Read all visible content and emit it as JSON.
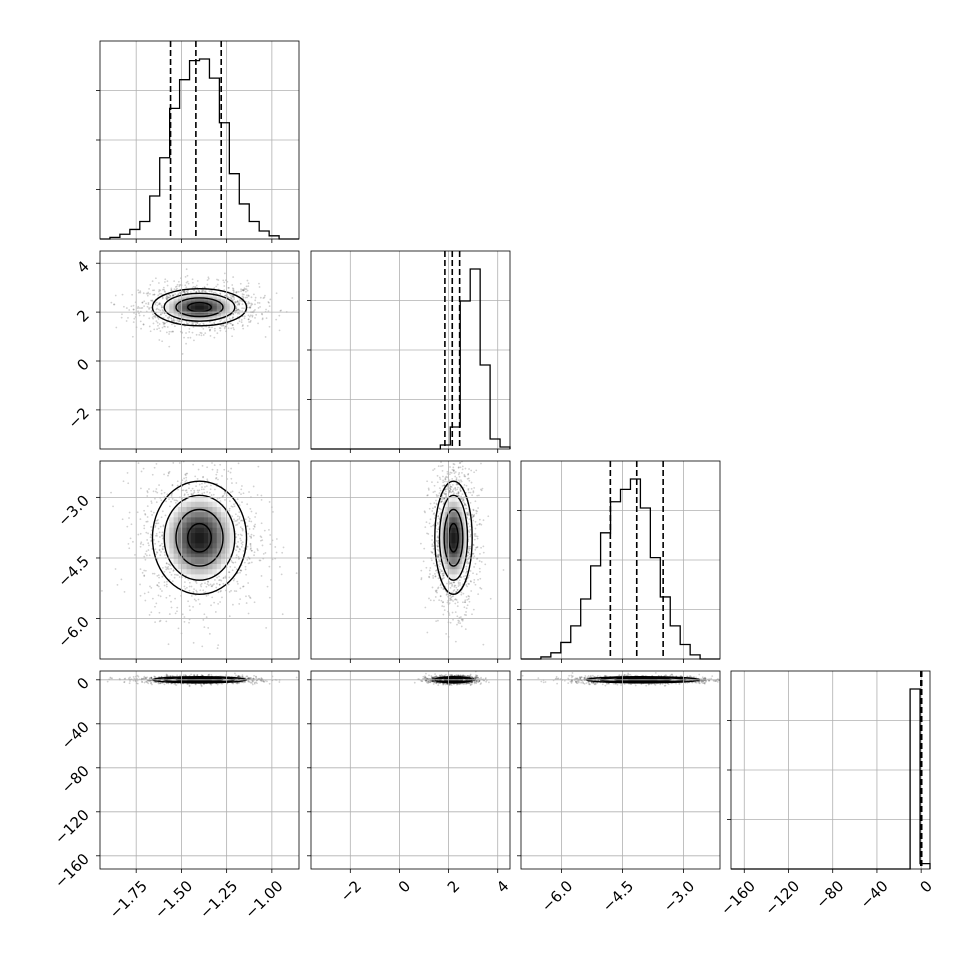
{
  "chart_data": {
    "type": "corner",
    "title": "",
    "parameters": [
      {
        "xlim": [
          -1.95,
          -0.85
        ],
        "ylim": [
          -3.6,
          4.5
        ],
        "ticks": [
          -1.75,
          -1.5,
          -1.25,
          -1.0
        ],
        "tick_labels": [
          "−1.75",
          "−1.50",
          "−1.25",
          "−1.00"
        ],
        "quantiles": [
          -1.56,
          -1.42,
          -1.28
        ],
        "peak": -1.4
      },
      {
        "xlim": [
          -3.6,
          4.5
        ],
        "ylim": [
          -3.6,
          4.5
        ],
        "ticks": [
          -2,
          0,
          2,
          4
        ],
        "tick_labels": [
          "−2",
          "0",
          "2",
          "4"
        ],
        "quantiles": [
          1.85,
          2.15,
          2.45
        ],
        "peak": 2.2
      },
      {
        "xlim": [
          -7.0,
          -2.1
        ],
        "ylim": [
          -7.0,
          -2.1
        ],
        "ticks": [
          -6.0,
          -4.5,
          -3.0
        ],
        "tick_labels": [
          "−6.0",
          "−4.5",
          "−3.0"
        ],
        "quantiles": [
          -4.8,
          -4.15,
          -3.5
        ],
        "peak": -4.0
      },
      {
        "xlim": [
          -172,
          8
        ],
        "ylim": [
          -172,
          8
        ],
        "ticks": [
          -160,
          -120,
          -80,
          -40,
          0
        ],
        "tick_labels": [
          "−160",
          "−120",
          "−80",
          "−40",
          "0"
        ],
        "quantiles": [
          -0.3,
          0.1,
          0.5
        ],
        "peak": 0.0
      }
    ],
    "histograms": [
      {
        "param": 0,
        "bin_start": -1.95,
        "bin_width": 0.055,
        "counts": [
          0,
          1,
          3,
          6,
          11,
          27,
          51,
          82,
          100,
          112,
          113,
          101,
          73,
          41,
          22,
          11,
          5,
          2,
          0,
          0
        ]
      },
      {
        "param": 1,
        "bin_start": -3.6,
        "bin_width": 0.405,
        "counts": [
          0,
          0,
          0,
          0,
          0,
          0,
          0,
          0,
          0,
          0,
          0,
          0,
          0,
          2,
          11,
          74,
          90,
          42,
          5,
          1
        ]
      },
      {
        "param": 2,
        "bin_start": -7.0,
        "bin_width": 0.245,
        "counts": [
          0,
          0,
          1,
          3,
          8,
          16,
          29,
          45,
          61,
          76,
          82,
          87,
          73,
          49,
          30,
          16,
          7,
          2,
          0,
          0
        ]
      },
      {
        "param": 3,
        "bin_start": -172,
        "bin_width": 9,
        "counts": [
          0,
          0,
          0,
          0,
          0,
          0,
          0,
          0,
          0,
          0,
          0,
          0,
          0,
          0,
          0,
          0,
          0,
          0,
          100,
          3
        ]
      }
    ],
    "pairs": [
      {
        "x": 0,
        "y": 1,
        "mean": [
          -1.4,
          2.2
        ],
        "sd": [
          0.13,
          0.38
        ]
      },
      {
        "x": 0,
        "y": 2,
        "mean": [
          -1.4,
          -4.0
        ],
        "sd": [
          0.13,
          0.7
        ]
      },
      {
        "x": 1,
        "y": 2,
        "mean": [
          2.2,
          -4.0
        ],
        "sd": [
          0.38,
          0.7
        ]
      },
      {
        "x": 0,
        "y": 3,
        "mean": [
          -1.4,
          0.0
        ],
        "sd": [
          0.13,
          1.4
        ]
      },
      {
        "x": 1,
        "y": 3,
        "mean": [
          2.2,
          0.0
        ],
        "sd": [
          0.38,
          1.4
        ]
      },
      {
        "x": 2,
        "y": 3,
        "mean": [
          -4.0,
          0.0
        ],
        "sd": [
          0.7,
          1.4
        ]
      }
    ],
    "contour_levels_sigma": [
      0.5,
      1.0,
      1.5,
      2.0
    ],
    "grid": true,
    "legend": "none"
  }
}
